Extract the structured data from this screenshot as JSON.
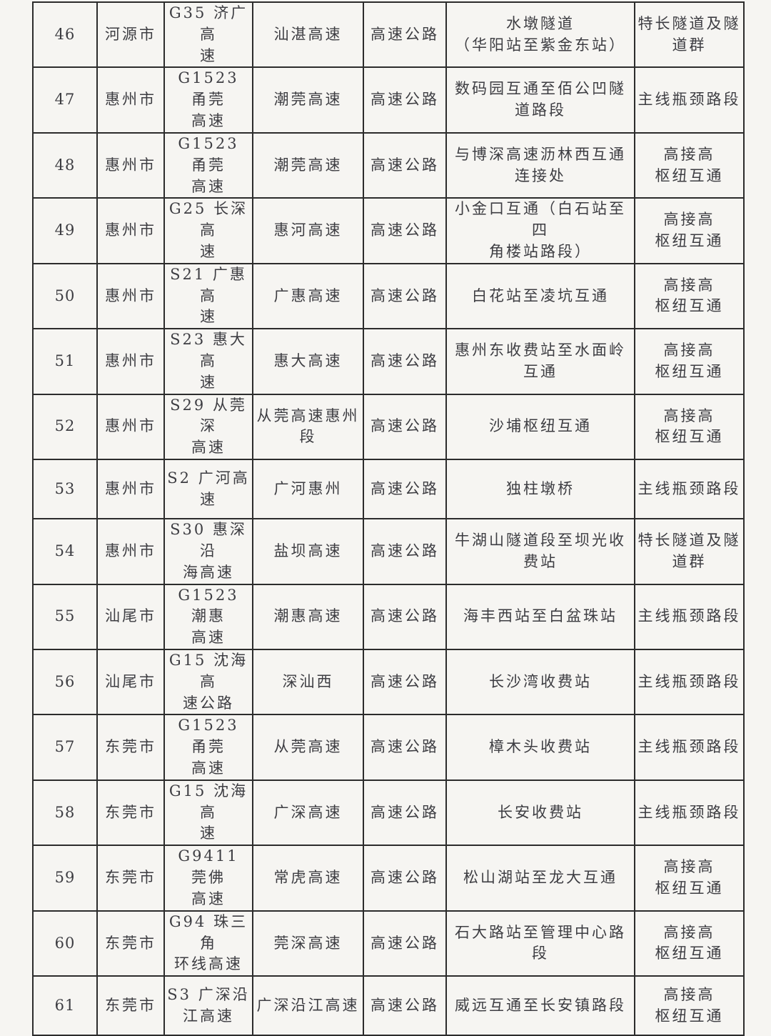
{
  "colors": {
    "page_background": "#f6f5f2",
    "table_border": "#2c2c2c",
    "text": "#3d3d42"
  },
  "table": {
    "columns": [
      "no",
      "city",
      "road_code",
      "road_name",
      "road_type",
      "section",
      "category"
    ],
    "rows": [
      {
        "no": "46",
        "city": "河源市",
        "road_code": "G35 济广高\n速",
        "road_name": "汕湛高速",
        "road_type": "高速公路",
        "section": "水墩隧道\n（华阳站至紫金东站）",
        "category": "特长隧道及隧\n道群"
      },
      {
        "no": "47",
        "city": "惠州市",
        "road_code": "G1523 甬莞\n高速",
        "road_name": "潮莞高速",
        "road_type": "高速公路",
        "section": "数码园互通至佰公凹隧\n道路段",
        "category": "主线瓶颈路段"
      },
      {
        "no": "48",
        "city": "惠州市",
        "road_code": "G1523 甬莞\n高速",
        "road_name": "潮莞高速",
        "road_type": "高速公路",
        "section": "与博深高速沥林西互通\n连接处",
        "category": "高接高\n枢纽互通"
      },
      {
        "no": "49",
        "city": "惠州市",
        "road_code": "G25 长深高\n速",
        "road_name": "惠河高速",
        "road_type": "高速公路",
        "section": "小金口互通（白石站至四\n角楼站路段）",
        "category": "高接高\n枢纽互通"
      },
      {
        "no": "50",
        "city": "惠州市",
        "road_code": "S21 广惠高\n速",
        "road_name": "广惠高速",
        "road_type": "高速公路",
        "section": "白花站至凌坑互通",
        "category": "高接高\n枢纽互通"
      },
      {
        "no": "51",
        "city": "惠州市",
        "road_code": "S23 惠大高\n速",
        "road_name": "惠大高速",
        "road_type": "高速公路",
        "section": "惠州东收费站至水面岭\n互通",
        "category": "高接高\n枢纽互通"
      },
      {
        "no": "52",
        "city": "惠州市",
        "road_code": "S29 从莞深\n高速",
        "road_name": "从莞高速惠州\n段",
        "road_type": "高速公路",
        "section": "沙埔枢纽互通",
        "category": "高接高\n枢纽互通"
      },
      {
        "no": "53",
        "city": "惠州市",
        "road_code": "S2 广河高\n速",
        "road_name": "广河惠州",
        "road_type": "高速公路",
        "section": "独柱墩桥",
        "category": "主线瓶颈路段"
      },
      {
        "no": "54",
        "city": "惠州市",
        "road_code": "S30 惠深沿\n海高速",
        "road_name": "盐坝高速",
        "road_type": "高速公路",
        "section": "牛湖山隧道段至坝光收\n费站",
        "category": "特长隧道及隧\n道群"
      },
      {
        "no": "55",
        "city": "汕尾市",
        "road_code": "G1523 潮惠\n高速",
        "road_name": "潮惠高速",
        "road_type": "高速公路",
        "section": "海丰西站至白盆珠站",
        "category": "主线瓶颈路段"
      },
      {
        "no": "56",
        "city": "汕尾市",
        "road_code": "G15 沈海高\n速公路",
        "road_name": "深汕西",
        "road_type": "高速公路",
        "section": "长沙湾收费站",
        "category": "主线瓶颈路段"
      },
      {
        "no": "57",
        "city": "东莞市",
        "road_code": "G1523 甬莞\n高速",
        "road_name": "从莞高速",
        "road_type": "高速公路",
        "section": "樟木头收费站",
        "category": "主线瓶颈路段"
      },
      {
        "no": "58",
        "city": "东莞市",
        "road_code": "G15 沈海高\n速",
        "road_name": "广深高速",
        "road_type": "高速公路",
        "section": "长安收费站",
        "category": "主线瓶颈路段"
      },
      {
        "no": "59",
        "city": "东莞市",
        "road_code": "G9411 莞佛\n高速",
        "road_name": "常虎高速",
        "road_type": "高速公路",
        "section": "松山湖站至龙大互通",
        "category": "高接高\n枢纽互通"
      },
      {
        "no": "60",
        "city": "东莞市",
        "road_code": "G94 珠三角\n环线高速",
        "road_name": "莞深高速",
        "road_type": "高速公路",
        "section": "石大路站至管理中心路\n段",
        "category": "高接高\n枢纽互通"
      },
      {
        "no": "61",
        "city": "东莞市",
        "road_code": "S3 广深沿\n江高速",
        "road_name": "广深沿江高速",
        "road_type": "高速公路",
        "section": "威远互通至长安镇路段",
        "category": "高接高\n枢纽互通"
      }
    ]
  }
}
